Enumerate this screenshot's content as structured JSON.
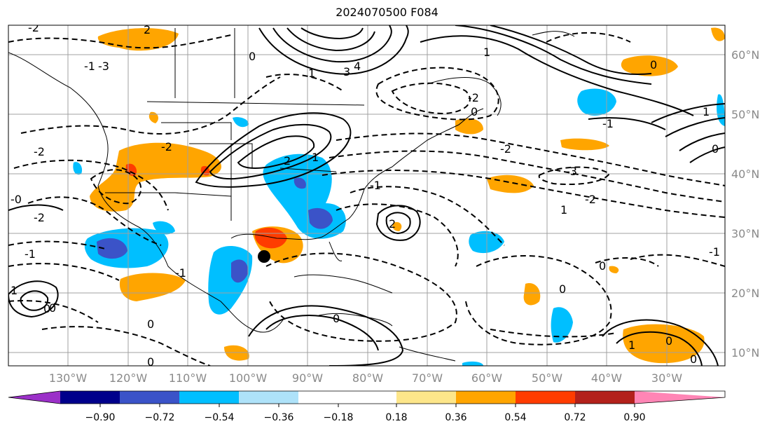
{
  "title": "2024070500 F084",
  "map": {
    "longitude_labels": [
      "130°W",
      "120°W",
      "110°W",
      "100°W",
      "90°W",
      "80°W",
      "70°W",
      "60°W",
      "50°W",
      "40°W",
      "30°W"
    ],
    "latitude_labels": [
      "60°N",
      "50°N",
      "40°N",
      "30°N",
      "20°N",
      "10°N"
    ],
    "contour_labels": [
      "-2",
      "2",
      "-3",
      "3",
      "4",
      "0",
      "-1",
      "1",
      "-2",
      "0",
      "-1",
      "1",
      "2",
      "-2",
      "0",
      "-3",
      "-2",
      "1",
      "-1",
      "0",
      "-2",
      "1",
      "0",
      "2",
      "1",
      "-1",
      "-1",
      "0",
      "1",
      "-0",
      "0",
      "0",
      "0",
      "0",
      "-1",
      "-2",
      "-2",
      "1",
      "0",
      "0",
      "0"
    ],
    "marker": "storm-center"
  },
  "colorbar": {
    "colors": [
      "#9b30c8",
      "#00008b",
      "#3b53c8",
      "#00bfff",
      "#aee2f9",
      "#ffffff",
      "#fde68a",
      "#ffa500",
      "#ff3c00",
      "#b3211b",
      "#ff85b5"
    ],
    "tick_labels": [
      "−0.90",
      "−0.72",
      "−0.54",
      "−0.36",
      "−0.18",
      "0.18",
      "0.36",
      "0.54",
      "0.72",
      "0.90"
    ]
  }
}
